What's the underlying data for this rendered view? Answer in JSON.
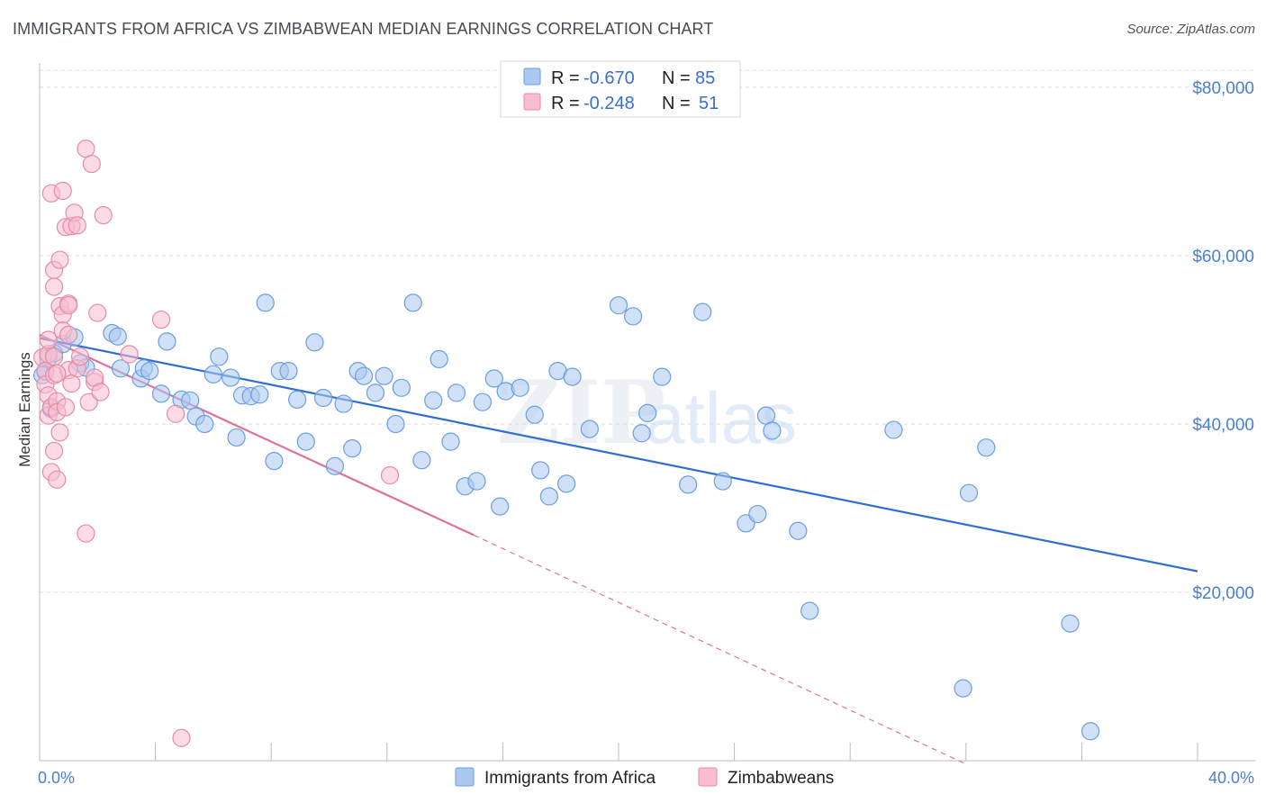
{
  "title": "IMMIGRANTS FROM AFRICA VS ZIMBABWEAN MEDIAN EARNINGS CORRELATION CHART",
  "source": "Source: ZipAtlas.com",
  "watermark": {
    "zip": "ZIP",
    "atlas": "atlas"
  },
  "legend": {
    "rows": [
      {
        "r_label": "R =",
        "r_value": "-0.670",
        "n_label": "N =",
        "n_value": "85",
        "color": "#aac8f0",
        "stroke": "#6a9ee0"
      },
      {
        "r_label": "R =",
        "r_value": "-0.248",
        "n_label": "N =",
        "n_value": "51",
        "color": "#f8bdd0",
        "stroke": "#e88aa8"
      }
    ]
  },
  "bottom_legend": {
    "items": [
      {
        "label": "Immigrants from Africa",
        "color": "#aac8f0",
        "stroke": "#6a9ee0"
      },
      {
        "label": "Zimbabweans",
        "color": "#f8bdd0",
        "stroke": "#e88aa8"
      }
    ]
  },
  "chart_data": {
    "type": "scatter",
    "title": "IMMIGRANTS FROM AFRICA VS ZIMBABWEAN MEDIAN EARNINGS CORRELATION CHART",
    "xlabel": "",
    "ylabel": "Median Earnings",
    "xlim": [
      0,
      40
    ],
    "ylim": [
      0,
      80000
    ],
    "x_tick_labels": [
      "0.0%",
      "40.0%"
    ],
    "y_ticks": [
      20000,
      40000,
      60000,
      80000
    ],
    "y_tick_labels": [
      "$20,000",
      "$40,000",
      "$60,000",
      "$80,000"
    ],
    "grid": true,
    "legend_position": "top-center",
    "series": [
      {
        "name": "Immigrants from Africa",
        "color": "#6a9ee0",
        "fill": "#aac8f0",
        "trend": {
          "x": [
            0,
            40
          ],
          "y": [
            50200,
            22500
          ],
          "color": "#2f6fd0"
        },
        "points": [
          [
            0.2,
            46200
          ],
          [
            0.3,
            47800
          ],
          [
            0.5,
            48400
          ],
          [
            0.8,
            49500
          ],
          [
            1.2,
            50300
          ],
          [
            1.4,
            47200
          ],
          [
            1.6,
            46700
          ],
          [
            2.5,
            50800
          ],
          [
            2.7,
            50400
          ],
          [
            2.8,
            46600
          ],
          [
            3.5,
            45400
          ],
          [
            3.6,
            46600
          ],
          [
            3.8,
            46300
          ],
          [
            4.2,
            43600
          ],
          [
            4.4,
            49800
          ],
          [
            4.9,
            42900
          ],
          [
            5.2,
            42800
          ],
          [
            5.4,
            40900
          ],
          [
            5.7,
            40000
          ],
          [
            6.0,
            45900
          ],
          [
            6.2,
            48000
          ],
          [
            6.6,
            45500
          ],
          [
            6.8,
            38400
          ],
          [
            7.0,
            43400
          ],
          [
            7.3,
            43300
          ],
          [
            7.6,
            43500
          ],
          [
            7.8,
            54400
          ],
          [
            8.1,
            35600
          ],
          [
            8.3,
            46300
          ],
          [
            8.6,
            46300
          ],
          [
            8.9,
            42900
          ],
          [
            9.2,
            37900
          ],
          [
            9.5,
            49700
          ],
          [
            9.8,
            43100
          ],
          [
            10.2,
            35000
          ],
          [
            10.5,
            42400
          ],
          [
            10.8,
            37100
          ],
          [
            11.0,
            46300
          ],
          [
            11.2,
            45700
          ],
          [
            11.6,
            43700
          ],
          [
            11.9,
            45700
          ],
          [
            12.3,
            40000
          ],
          [
            12.5,
            44300
          ],
          [
            12.9,
            54400
          ],
          [
            13.2,
            35700
          ],
          [
            13.6,
            42800
          ],
          [
            13.8,
            47700
          ],
          [
            14.2,
            37900
          ],
          [
            14.4,
            43700
          ],
          [
            14.7,
            32600
          ],
          [
            15.1,
            33200
          ],
          [
            15.3,
            42600
          ],
          [
            15.7,
            45400
          ],
          [
            15.9,
            30200
          ],
          [
            16.1,
            43900
          ],
          [
            16.6,
            44300
          ],
          [
            17.1,
            41100
          ],
          [
            17.3,
            34500
          ],
          [
            17.6,
            31400
          ],
          [
            17.9,
            46300
          ],
          [
            18.2,
            32900
          ],
          [
            18.4,
            45600
          ],
          [
            19.0,
            39400
          ],
          [
            20.0,
            54100
          ],
          [
            20.5,
            52800
          ],
          [
            20.8,
            38900
          ],
          [
            21.0,
            41300
          ],
          [
            21.5,
            45600
          ],
          [
            22.4,
            32800
          ],
          [
            22.9,
            53300
          ],
          [
            23.6,
            33200
          ],
          [
            24.4,
            28200
          ],
          [
            24.8,
            29300
          ],
          [
            25.1,
            41000
          ],
          [
            25.3,
            39200
          ],
          [
            26.2,
            27300
          ],
          [
            26.6,
            17800
          ],
          [
            29.5,
            39300
          ],
          [
            31.9,
            8600
          ],
          [
            32.1,
            31800
          ],
          [
            32.7,
            37200
          ],
          [
            35.6,
            16300
          ],
          [
            36.3,
            3500
          ],
          [
            0.1,
            45800
          ],
          [
            0.4,
            41800
          ]
        ]
      },
      {
        "name": "Zimbabweans",
        "color": "#e88aa8",
        "fill": "#f8bdd0",
        "trend": {
          "x": [
            0,
            15
          ],
          "y": [
            50600,
            26800
          ],
          "color": "#e0709a"
        },
        "trend_extension": {
          "x": [
            15,
            32
          ],
          "y": [
            26800,
            -400
          ]
        },
        "points": [
          [
            0.1,
            47900
          ],
          [
            0.2,
            46300
          ],
          [
            0.2,
            44700
          ],
          [
            0.3,
            43400
          ],
          [
            0.3,
            41000
          ],
          [
            0.3,
            48300
          ],
          [
            0.3,
            50000
          ],
          [
            0.4,
            42000
          ],
          [
            0.4,
            34300
          ],
          [
            0.4,
            67400
          ],
          [
            0.5,
            56300
          ],
          [
            0.5,
            58300
          ],
          [
            0.5,
            48000
          ],
          [
            0.5,
            45800
          ],
          [
            0.5,
            36800
          ],
          [
            0.6,
            42700
          ],
          [
            0.6,
            41400
          ],
          [
            0.6,
            33400
          ],
          [
            0.7,
            54000
          ],
          [
            0.7,
            39000
          ],
          [
            0.7,
            59500
          ],
          [
            0.8,
            67700
          ],
          [
            0.8,
            53000
          ],
          [
            0.8,
            51100
          ],
          [
            0.9,
            63400
          ],
          [
            0.9,
            42000
          ],
          [
            1.0,
            54300
          ],
          [
            1.0,
            54100
          ],
          [
            1.0,
            46400
          ],
          [
            1.0,
            50600
          ],
          [
            1.1,
            63500
          ],
          [
            1.2,
            65100
          ],
          [
            1.3,
            46600
          ],
          [
            1.3,
            63600
          ],
          [
            1.4,
            48000
          ],
          [
            1.6,
            27000
          ],
          [
            1.6,
            72700
          ],
          [
            1.7,
            42600
          ],
          [
            1.8,
            70900
          ],
          [
            1.9,
            45000
          ],
          [
            1.9,
            45500
          ],
          [
            2.0,
            53200
          ],
          [
            2.1,
            43800
          ],
          [
            2.2,
            64800
          ],
          [
            3.1,
            48300
          ],
          [
            4.2,
            52400
          ],
          [
            4.7,
            41200
          ],
          [
            4.9,
            2700
          ],
          [
            12.1,
            33900
          ],
          [
            1.1,
            44800
          ],
          [
            0.6,
            46000
          ]
        ]
      }
    ]
  }
}
